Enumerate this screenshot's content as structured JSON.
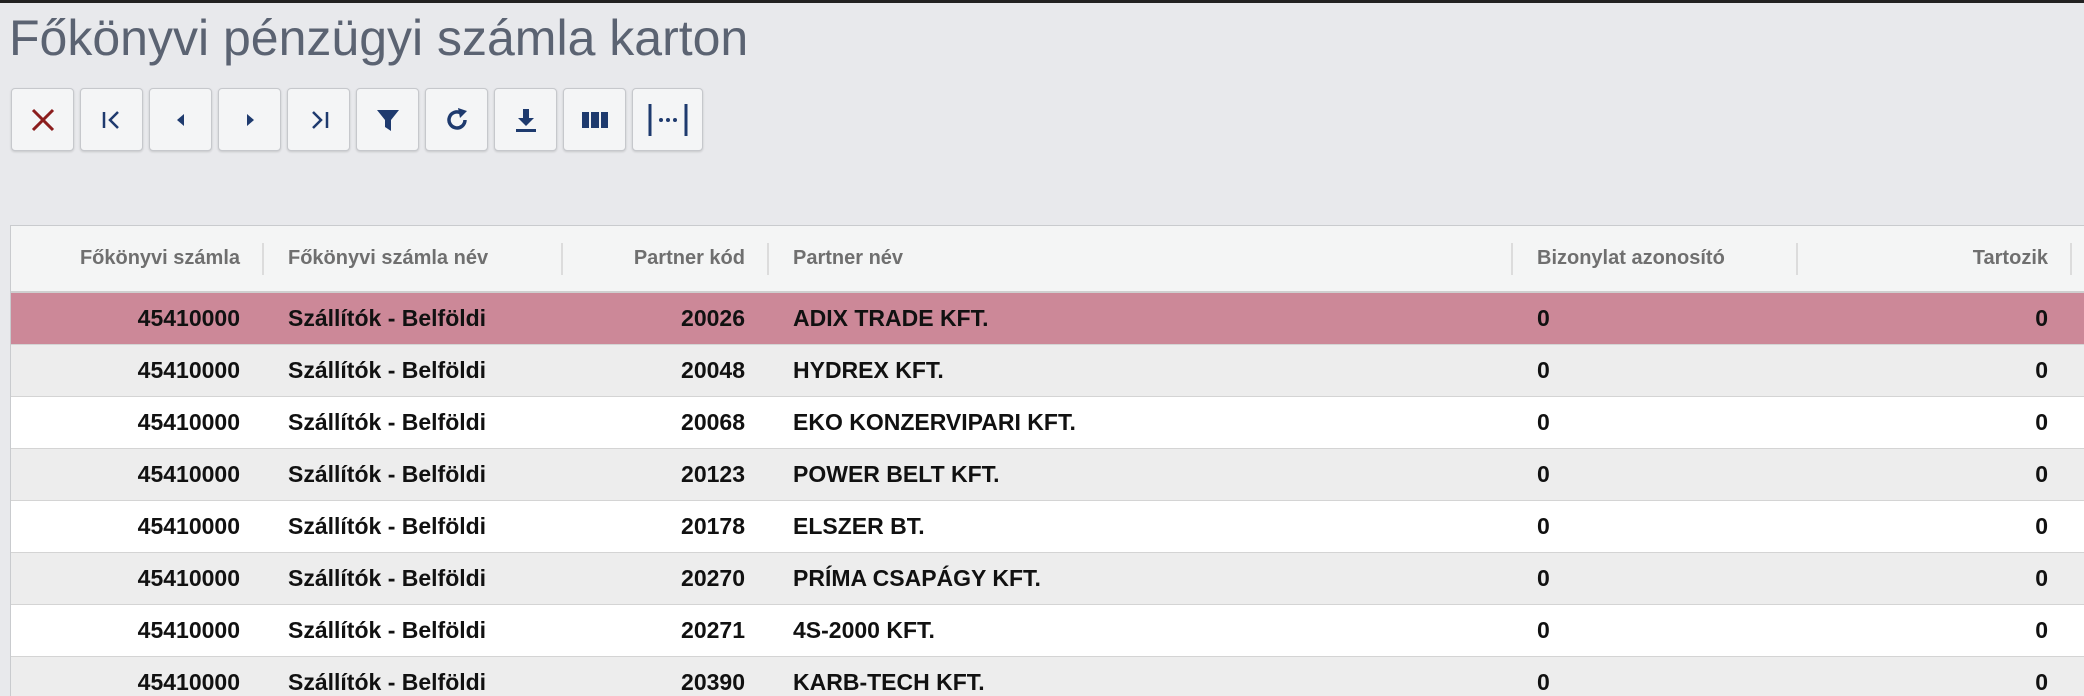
{
  "header": {
    "title": "Főkönyvi pénzügyi számla karton"
  },
  "table": {
    "columns": [
      "Főkönyvi számla",
      "Főkönyvi számla név",
      "Partner kód",
      "Partner név",
      "Bizonylat azonosító",
      "Tartozik"
    ],
    "rows": [
      [
        "45410000",
        "Szállítók - Belföldi",
        "20026",
        "ADIX TRADE KFT.",
        "0",
        "0"
      ],
      [
        "45410000",
        "Szállítók - Belföldi",
        "20048",
        "HYDREX KFT.",
        "0",
        "0"
      ],
      [
        "45410000",
        "Szállítók - Belföldi",
        "20068",
        "EKO KONZERVIPARI KFT.",
        "0",
        "0"
      ],
      [
        "45410000",
        "Szállítók - Belföldi",
        "20123",
        "POWER BELT KFT.",
        "0",
        "0"
      ],
      [
        "45410000",
        "Szállítók - Belföldi",
        "20178",
        "ELSZER BT.",
        "0",
        "0"
      ],
      [
        "45410000",
        "Szállítók - Belföldi",
        "20270",
        "PRÍMA CSAPÁGY KFT.",
        "0",
        "0"
      ],
      [
        "45410000",
        "Szállítók - Belföldi",
        "20271",
        "4S-2000 KFT.",
        "0",
        "0"
      ],
      [
        "45410000",
        "Szállítók - Belföldi",
        "20390",
        "KARB-TECH KFT.",
        "0",
        "0"
      ]
    ]
  }
}
